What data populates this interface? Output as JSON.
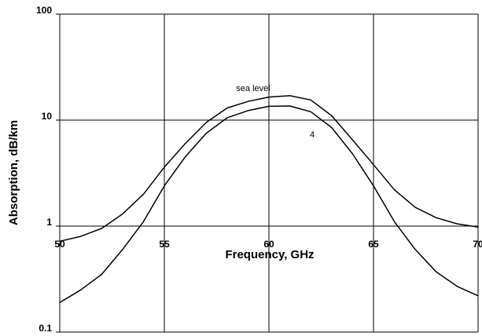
{
  "chart_data": {
    "type": "line",
    "xlabel": "Frequency, GHz",
    "ylabel": "Absorption, dB/km",
    "x": [
      50,
      51,
      52,
      53,
      54,
      55,
      56,
      57,
      58,
      59,
      60,
      61,
      62,
      63,
      64,
      65,
      66,
      67,
      68,
      69,
      70
    ],
    "series": [
      {
        "name": "sea level",
        "color": "#000000",
        "values": [
          0.72,
          0.8,
          0.95,
          1.3,
          2.0,
          3.6,
          6,
          9.5,
          13,
          15,
          16.5,
          17,
          15.5,
          11,
          6.5,
          3.8,
          2.2,
          1.5,
          1.2,
          1.05,
          0.98
        ]
      },
      {
        "name": "4",
        "color": "#000000",
        "values": [
          0.19,
          0.25,
          0.35,
          0.6,
          1.1,
          2.4,
          4.5,
          7.5,
          10.5,
          12.3,
          13.5,
          13.6,
          12,
          8.5,
          4.8,
          2.4,
          1.1,
          0.6,
          0.37,
          0.27,
          0.22
        ]
      }
    ],
    "xlim": [
      50,
      70
    ],
    "xticks": [
      50,
      55,
      60,
      65,
      70
    ],
    "ylim": [
      0.1,
      100
    ],
    "yticks": [
      0.1,
      1,
      10,
      100
    ],
    "ylog": true,
    "grid": true
  }
}
